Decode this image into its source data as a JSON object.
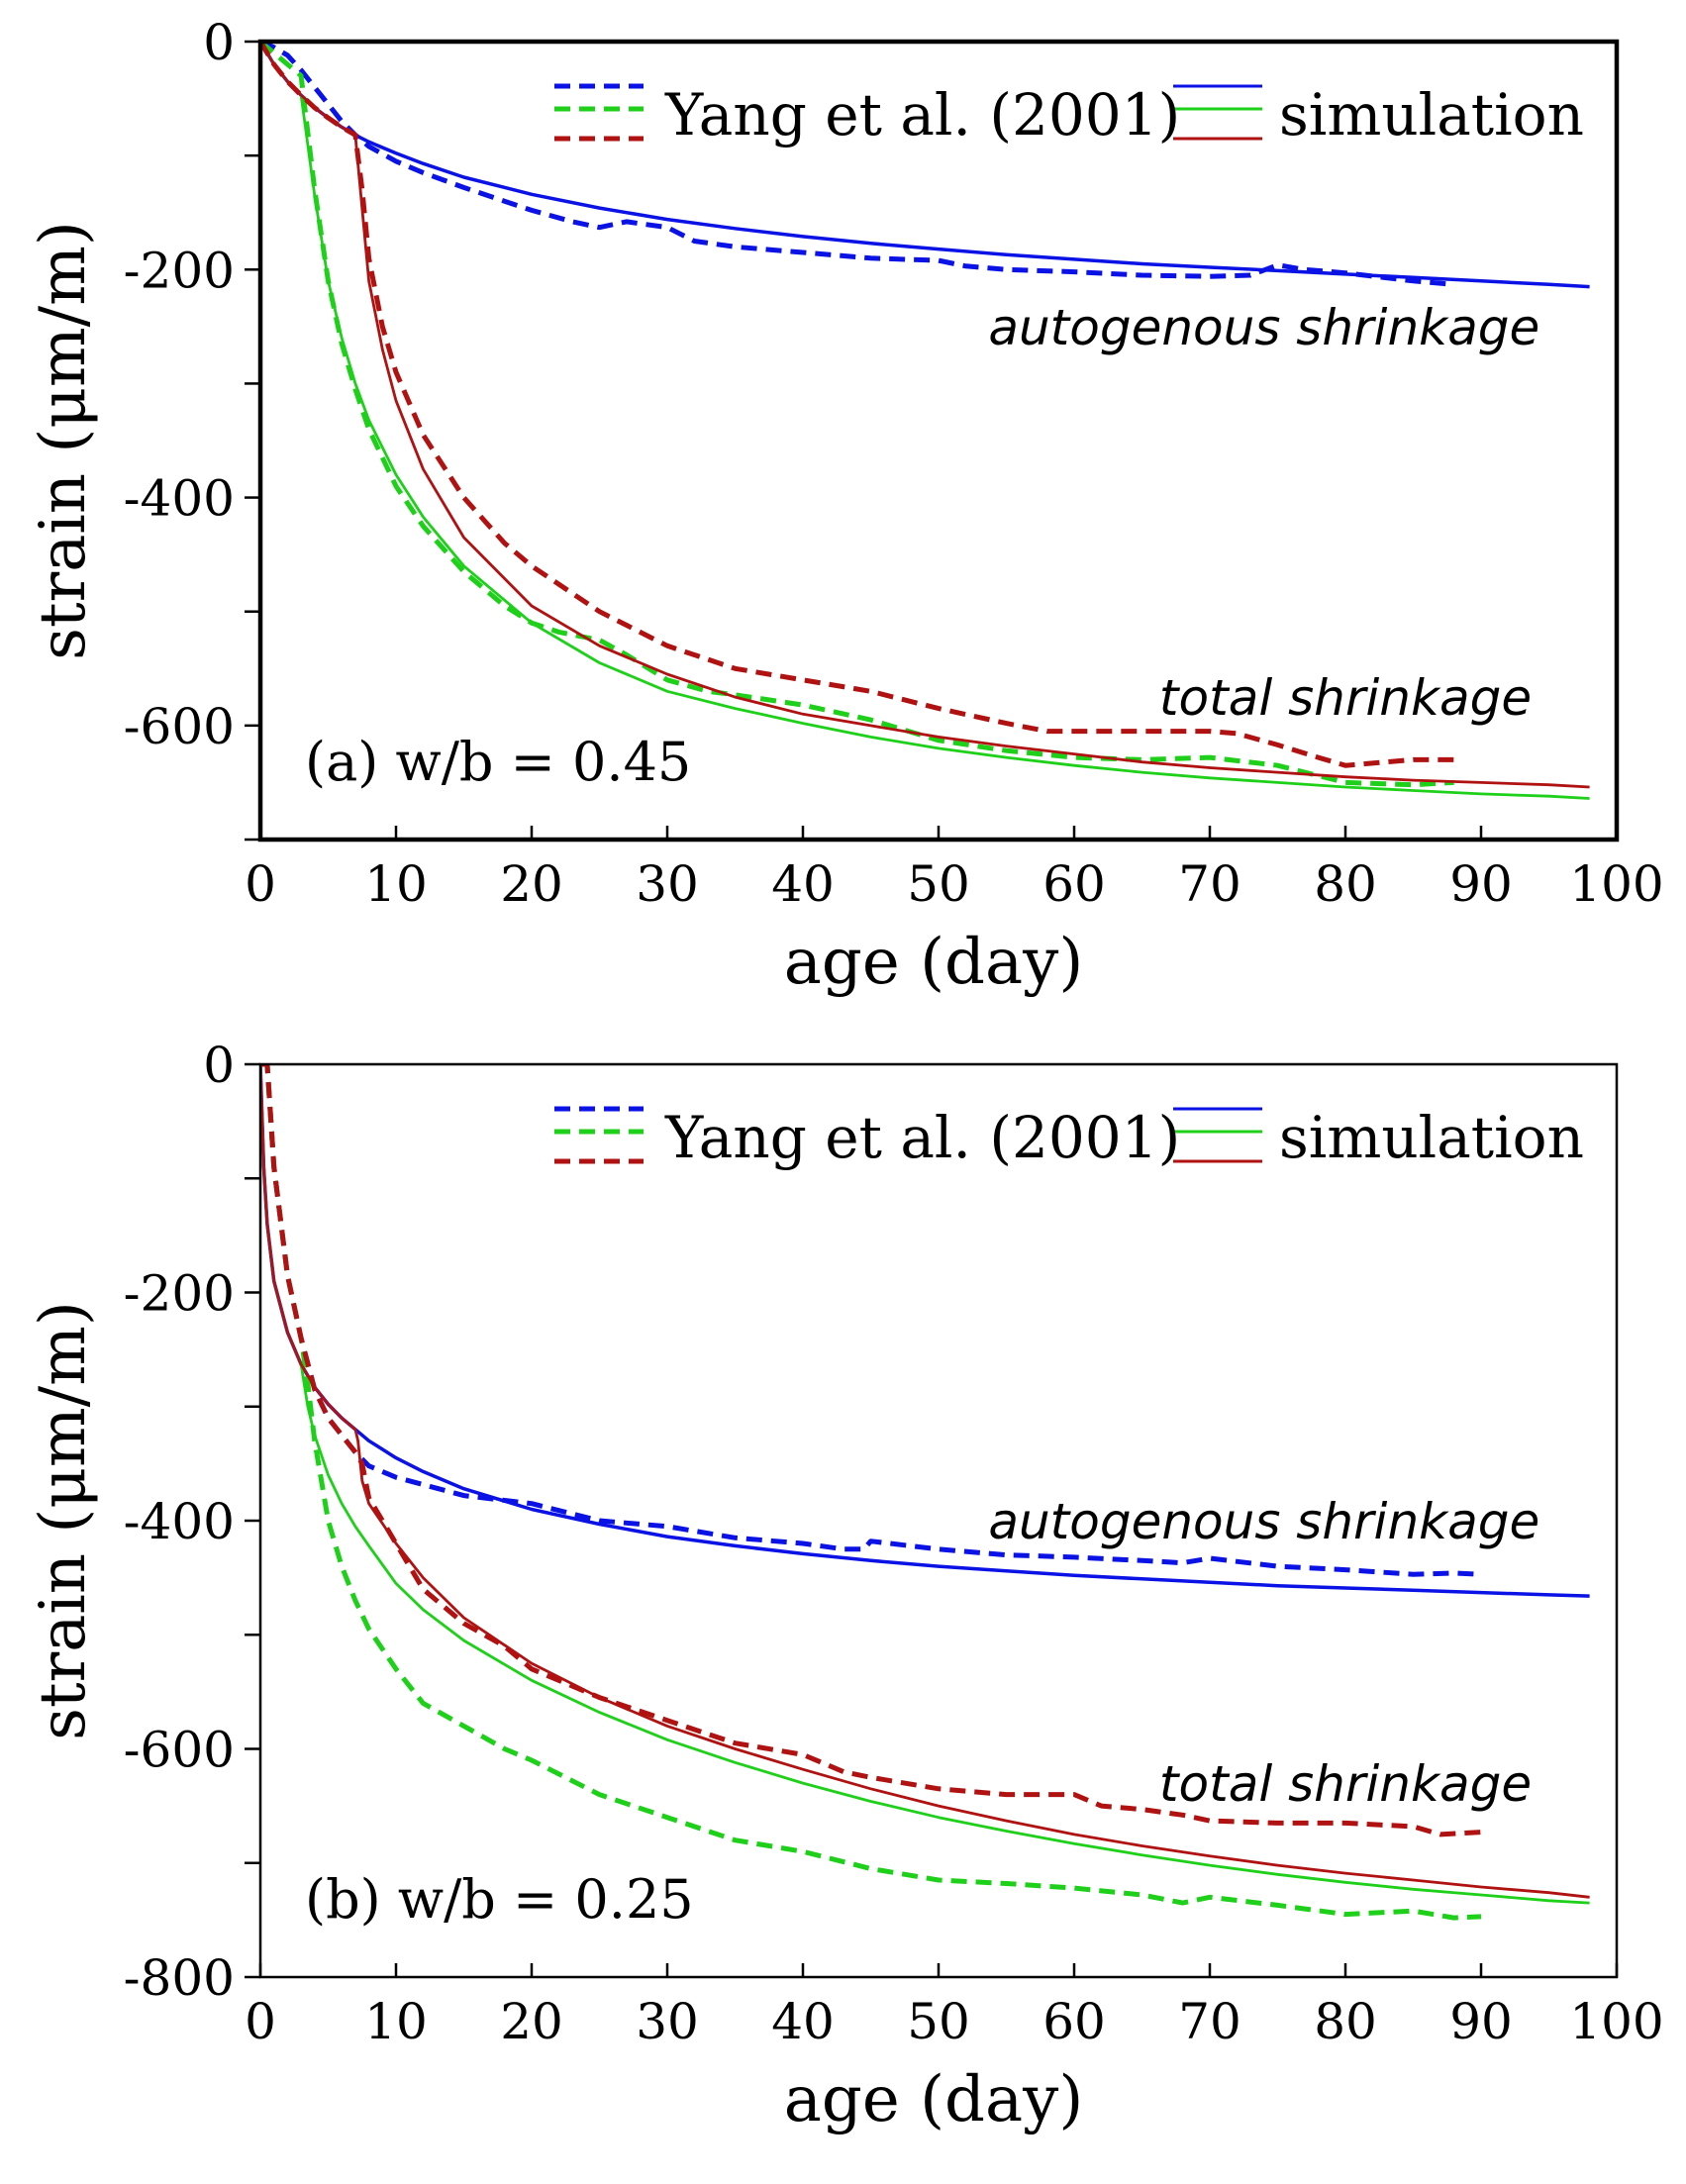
{
  "colors": {
    "autogenous": "#0a12e6",
    "total_a": "#1fd01a",
    "total_b": "#b01212",
    "axis": "#000000"
  },
  "chart_data": [
    {
      "type": "line",
      "panel_label": "(a) w/b = 0.45",
      "xlabel": "age (day)",
      "ylabel": "strain (μm/m)",
      "xlim": [
        0,
        100
      ],
      "ylim": [
        -700,
        0
      ],
      "xticks": [
        0,
        10,
        20,
        30,
        40,
        50,
        60,
        70,
        80,
        90,
        100
      ],
      "yticks": [
        0,
        -200,
        -400,
        -600
      ],
      "yticks_minor": [
        -100,
        -300,
        -500,
        -700
      ],
      "legend": {
        "experiment": "Yang et al. (2001)",
        "simulation": "simulation",
        "position": "top-right"
      },
      "annotations": [
        {
          "text": "autogenous shrinkage",
          "x": 74,
          "y": -250
        },
        {
          "text": "total shrinkage",
          "x": 80,
          "y": -575
        }
      ],
      "series": [
        {
          "name": "autogenous (Yang et al. 2001)",
          "style": "dashed",
          "color_key": "autogenous",
          "x": [
            0,
            1,
            2,
            3,
            4,
            5,
            6,
            7,
            8,
            10,
            12,
            15,
            18,
            20,
            23,
            25,
            27,
            30,
            32,
            35,
            40,
            45,
            50,
            52,
            55,
            60,
            65,
            70,
            73,
            75,
            77,
            80,
            85,
            88
          ],
          "y": [
            0,
            -5,
            -12,
            -25,
            -40,
            -55,
            -70,
            -82,
            -92,
            -105,
            -115,
            -128,
            -140,
            -148,
            -158,
            -163,
            -158,
            -163,
            -175,
            -180,
            -185,
            -190,
            -192,
            -197,
            -200,
            -202,
            -205,
            -206,
            -205,
            -196,
            -200,
            -203,
            -210,
            -213
          ]
        },
        {
          "name": "autogenous (simulation)",
          "style": "solid",
          "color_key": "autogenous",
          "x": [
            0,
            1,
            2,
            3,
            4,
            5,
            6,
            7,
            8,
            10,
            12,
            15,
            20,
            25,
            30,
            35,
            40,
            45,
            50,
            55,
            60,
            65,
            70,
            75,
            80,
            85,
            90,
            95,
            98
          ],
          "y": [
            0,
            -20,
            -35,
            -47,
            -58,
            -67,
            -75,
            -82,
            -88,
            -98,
            -107,
            -119,
            -134,
            -146,
            -156,
            -164,
            -171,
            -177,
            -182,
            -187,
            -191,
            -195,
            -198,
            -201,
            -204,
            -207,
            -210,
            -213,
            -215
          ]
        },
        {
          "name": "total, green (Yang et al. 2001)",
          "style": "dashed",
          "color_key": "total_a",
          "x": [
            0,
            1,
            2,
            3,
            3.5,
            4,
            5,
            6,
            7,
            8,
            10,
            12,
            15,
            18,
            20,
            22,
            25,
            27,
            30,
            33,
            35,
            40,
            45,
            50,
            55,
            60,
            65,
            70,
            75,
            80,
            85,
            88
          ],
          "y": [
            0,
            -10,
            -20,
            -30,
            -80,
            -130,
            -210,
            -265,
            -305,
            -340,
            -390,
            -425,
            -465,
            -495,
            -510,
            -518,
            -525,
            -538,
            -560,
            -570,
            -573,
            -582,
            -595,
            -613,
            -622,
            -628,
            -630,
            -628,
            -635,
            -650,
            -652,
            -650
          ]
        },
        {
          "name": "total, green (simulation)",
          "style": "solid",
          "color_key": "total_a",
          "x": [
            0,
            1,
            2,
            3,
            4,
            5,
            6,
            7,
            8,
            10,
            12,
            15,
            20,
            25,
            30,
            35,
            40,
            45,
            50,
            55,
            60,
            65,
            70,
            75,
            80,
            85,
            90,
            95,
            98
          ],
          "y": [
            0,
            -20,
            -35,
            -47,
            -135,
            -210,
            -260,
            -300,
            -332,
            -380,
            -417,
            -460,
            -510,
            -545,
            -570,
            -585,
            -598,
            -610,
            -620,
            -628,
            -635,
            -641,
            -646,
            -650,
            -654,
            -657,
            -660,
            -662,
            -664
          ]
        },
        {
          "name": "total, red (Yang et al. 2001)",
          "style": "dashed",
          "color_key": "total_b",
          "x": [
            0,
            1,
            2,
            3,
            4,
            5,
            6,
            7,
            7.5,
            8,
            9,
            10,
            12,
            15,
            18,
            20,
            25,
            30,
            35,
            40,
            45,
            50,
            55,
            58,
            60,
            65,
            70,
            72,
            75,
            78,
            80,
            85,
            88
          ],
          "y": [
            0,
            -20,
            -35,
            -47,
            -58,
            -67,
            -75,
            -82,
            -130,
            -190,
            -250,
            -290,
            -345,
            -400,
            -440,
            -460,
            -500,
            -530,
            -550,
            -560,
            -570,
            -585,
            -598,
            -605,
            -605,
            -605,
            -605,
            -607,
            -617,
            -628,
            -635,
            -630,
            -630
          ]
        },
        {
          "name": "total, red (simulation)",
          "style": "solid",
          "color_key": "total_b",
          "x": [
            0,
            1,
            2,
            3,
            4,
            5,
            6,
            7,
            8,
            9,
            10,
            12,
            15,
            20,
            25,
            30,
            35,
            40,
            45,
            50,
            55,
            60,
            65,
            70,
            75,
            80,
            85,
            90,
            95,
            98
          ],
          "y": [
            0,
            -20,
            -35,
            -47,
            -58,
            -67,
            -75,
            -82,
            -210,
            -270,
            -315,
            -375,
            -435,
            -495,
            -530,
            -555,
            -575,
            -590,
            -600,
            -610,
            -618,
            -625,
            -632,
            -637,
            -641,
            -645,
            -648,
            -650,
            -652,
            -654
          ]
        }
      ]
    },
    {
      "type": "line",
      "panel_label": "(b) w/b = 0.25",
      "xlabel": "age (day)",
      "ylabel": "strain (μm/m)",
      "xlim": [
        0,
        100
      ],
      "ylim": [
        -800,
        0
      ],
      "xticks": [
        0,
        10,
        20,
        30,
        40,
        50,
        60,
        70,
        80,
        90,
        100
      ],
      "yticks": [
        0,
        -200,
        -400,
        -600,
        -800
      ],
      "yticks_minor": [
        -100,
        -300,
        -500,
        -700
      ],
      "legend": {
        "experiment": "Yang et al. (2001)",
        "simulation": "simulation",
        "position": "top-right"
      },
      "annotations": [
        {
          "text": "autogenous shrinkage",
          "x": 74,
          "y": -400
        },
        {
          "text": "total shrinkage",
          "x": 80,
          "y": -630
        }
      ],
      "series": [
        {
          "name": "autogenous (Yang et al. 2001)",
          "style": "dashed",
          "color_key": "autogenous",
          "x": [
            0,
            0.5,
            1,
            2,
            3,
            4,
            5,
            6,
            7,
            8,
            10,
            15,
            20,
            25,
            30,
            35,
            40,
            43,
            44.5,
            45,
            50,
            55,
            60,
            65,
            68,
            70,
            75,
            80,
            85,
            88,
            90
          ],
          "y": [
            0,
            0,
            -90,
            -185,
            -240,
            -285,
            -310,
            -325,
            -340,
            -352,
            -362,
            -378,
            -385,
            -400,
            -405,
            -415,
            -420,
            -425,
            -425,
            -418,
            -425,
            -430,
            -432,
            -435,
            -437,
            -433,
            -440,
            -443,
            -447,
            -446,
            -447
          ]
        },
        {
          "name": "autogenous (simulation)",
          "style": "solid",
          "color_key": "autogenous",
          "x": [
            0,
            0.25,
            0.5,
            1,
            2,
            3,
            4,
            5,
            6,
            7,
            8,
            10,
            12,
            15,
            20,
            25,
            30,
            35,
            40,
            45,
            50,
            55,
            60,
            65,
            70,
            75,
            80,
            85,
            90,
            95,
            98
          ],
          "y": [
            0,
            -90,
            -140,
            -190,
            -235,
            -263,
            -283,
            -298,
            -310,
            -320,
            -330,
            -345,
            -357,
            -372,
            -390,
            -403,
            -414,
            -422,
            -429,
            -435,
            -440,
            -444,
            -448,
            -451,
            -454,
            -457,
            -459,
            -461,
            -463,
            -465,
            -466
          ]
        },
        {
          "name": "total, green (Yang et al. 2001)",
          "style": "dashed",
          "color_key": "total_a",
          "x": [
            0,
            0.5,
            1,
            2,
            3,
            3.5,
            4,
            5,
            6,
            7,
            8,
            10,
            12,
            15,
            18,
            20,
            25,
            30,
            35,
            40,
            45,
            50,
            55,
            60,
            65,
            68,
            70,
            75,
            80,
            85,
            88,
            90
          ],
          "y": [
            0,
            0,
            -90,
            -185,
            -240,
            -280,
            -330,
            -400,
            -440,
            -470,
            -495,
            -530,
            -560,
            -580,
            -600,
            -610,
            -640,
            -660,
            -680,
            -690,
            -705,
            -715,
            -718,
            -722,
            -728,
            -735,
            -730,
            -737,
            -745,
            -742,
            -748,
            -747
          ]
        },
        {
          "name": "total, green (simulation)",
          "style": "solid",
          "color_key": "total_a",
          "x": [
            0,
            0.25,
            0.5,
            1,
            2,
            3,
            3.5,
            4,
            5,
            6,
            7,
            8,
            10,
            12,
            15,
            20,
            25,
            30,
            35,
            40,
            45,
            50,
            55,
            60,
            65,
            70,
            75,
            80,
            85,
            90,
            95,
            98
          ],
          "y": [
            0,
            -90,
            -140,
            -190,
            -235,
            -263,
            -300,
            -325,
            -360,
            -385,
            -405,
            -422,
            -455,
            -478,
            -505,
            -540,
            -568,
            -592,
            -612,
            -630,
            -646,
            -660,
            -672,
            -683,
            -693,
            -702,
            -710,
            -717,
            -723,
            -728,
            -733,
            -735
          ]
        },
        {
          "name": "total, red (Yang et al. 2001)",
          "style": "dashed",
          "color_key": "total_b",
          "x": [
            0,
            0.5,
            1,
            2,
            3,
            4,
            5,
            6,
            7,
            7.5,
            8,
            10,
            12,
            15,
            18,
            20,
            25,
            30,
            35,
            40,
            43,
            45,
            50,
            55,
            60,
            62,
            65,
            68,
            70,
            75,
            80,
            85,
            87,
            90
          ],
          "y": [
            0,
            0,
            -90,
            -185,
            -240,
            -285,
            -310,
            -325,
            -340,
            -350,
            -380,
            -420,
            -460,
            -490,
            -510,
            -530,
            -555,
            -575,
            -595,
            -605,
            -620,
            -625,
            -635,
            -640,
            -640,
            -650,
            -653,
            -658,
            -663,
            -665,
            -665,
            -668,
            -675,
            -673
          ]
        },
        {
          "name": "total, red (simulation)",
          "style": "solid",
          "color_key": "total_b",
          "x": [
            0,
            0.25,
            0.5,
            1,
            2,
            3,
            4,
            5,
            6,
            7,
            7.2,
            7.5,
            8,
            10,
            12,
            15,
            20,
            25,
            30,
            35,
            40,
            45,
            50,
            55,
            60,
            65,
            70,
            75,
            80,
            85,
            90,
            95,
            98
          ],
          "y": [
            0,
            -90,
            -140,
            -190,
            -235,
            -263,
            -283,
            -298,
            -310,
            -320,
            -330,
            -365,
            -385,
            -420,
            -450,
            -485,
            -525,
            -555,
            -580,
            -600,
            -618,
            -635,
            -650,
            -663,
            -675,
            -685,
            -694,
            -702,
            -709,
            -715,
            -721,
            -726,
            -730
          ]
        }
      ]
    }
  ]
}
